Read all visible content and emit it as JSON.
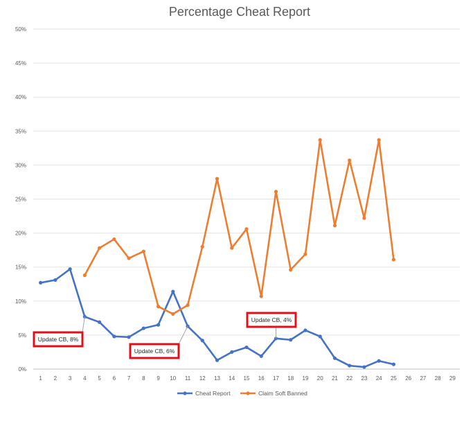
{
  "chart_data": {
    "type": "line",
    "title": "Percentage Cheat Report",
    "xlabel": "",
    "ylabel": "",
    "categories": [
      "1",
      "2",
      "3",
      "4",
      "5",
      "6",
      "7",
      "8",
      "9",
      "10",
      "11",
      "12",
      "13",
      "14",
      "15",
      "16",
      "17",
      "18",
      "19",
      "20",
      "21",
      "22",
      "23",
      "24",
      "25",
      "26",
      "27",
      "28",
      "29"
    ],
    "ylim": [
      0,
      50
    ],
    "yticks": [
      "0%",
      "5%",
      "10%",
      "15%",
      "20%",
      "25%",
      "30%",
      "35%",
      "40%",
      "45%",
      "50%"
    ],
    "grid": true,
    "legend_position": "bottom",
    "series": [
      {
        "name": "Cheat Report",
        "color": "#4472C4",
        "values": [
          12.7,
          13.1,
          14.7,
          7.7,
          6.9,
          4.8,
          4.7,
          6.0,
          6.5,
          11.4,
          6.3,
          4.2,
          1.3,
          2.5,
          3.2,
          1.9,
          4.5,
          4.3,
          5.7,
          4.8,
          1.6,
          0.5,
          0.3,
          1.2,
          0.7,
          null,
          null,
          null,
          null
        ]
      },
      {
        "name": "Claim Soft Banned",
        "color": "#ED7D31",
        "values": [
          null,
          null,
          null,
          13.8,
          17.8,
          19.1,
          16.3,
          17.3,
          9.2,
          8.1,
          9.4,
          18.0,
          28.0,
          17.8,
          20.6,
          10.7,
          26.1,
          14.6,
          16.9,
          33.7,
          21.1,
          30.7,
          22.2,
          33.7,
          16.1,
          null,
          null,
          null,
          null
        ]
      }
    ],
    "annotations": [
      {
        "text": "Update CB, 8%",
        "x": "4",
        "y": 7.7
      },
      {
        "text": "Update CB, 6%",
        "x": "11",
        "y": 6.3
      },
      {
        "text": "Update CB, 4%",
        "x": "17",
        "y": 4.5
      }
    ]
  }
}
